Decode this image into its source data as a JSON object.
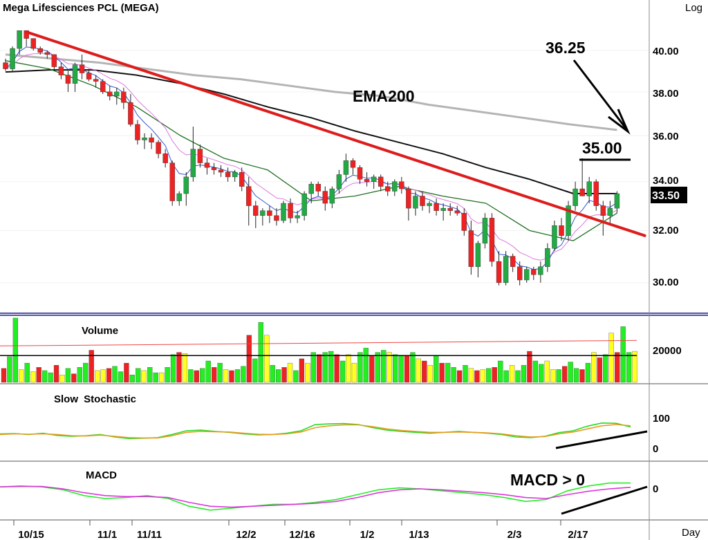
{
  "header": {
    "title": "Mega Lifesciences PCL (MEGA)",
    "scale_label": "Log"
  },
  "price_axis": {
    "ticks": [
      "40.00",
      "38.00",
      "36.00",
      "34.00",
      "32.00",
      "30.00"
    ],
    "last_price_label": "33.50"
  },
  "annotations": {
    "ema200": "EMA200",
    "target": "36.25",
    "resistance": "35.00",
    "macd_note": "MACD > 0"
  },
  "panels": {
    "volume": "Volume",
    "stochastic": "Slow Stochastic",
    "macd": "MACD"
  },
  "volume_axis": {
    "ticks": [
      "20000"
    ]
  },
  "stoch_axis": {
    "ticks": [
      "100",
      "0"
    ]
  },
  "macd_axis": {
    "ticks": [
      "0"
    ]
  },
  "date_axis": {
    "labels": [
      "10/15",
      "11/1",
      "11/11",
      "12/2",
      "12/16",
      "1/2",
      "1/13",
      "2/3",
      "2/17"
    ],
    "unit_label": "Day"
  },
  "colors": {
    "up": "#22aa44",
    "down": "#ee2222",
    "trendline": "#dd1c1c",
    "ema200": "#b4b4b4",
    "ema50": "#111111",
    "ema20": "#1e6e1e",
    "ema10": "#dd77dd",
    "ema5": "#3355cc",
    "vol_up": "#22ee22",
    "vol_down": "#ee2222",
    "vol_yellow": "#ffff22",
    "stoch_k": "#22dd22",
    "stoch_d": "#ee9922",
    "macd": "#22ee22",
    "macd_signal": "#dd33dd"
  },
  "chart_data": [
    {
      "type": "candlestick",
      "title": "Mega Lifesciences PCL (MEGA)",
      "y_scale": "log",
      "ylim": [
        29.0,
        42.3
      ],
      "candles": [
        [
          39.4,
          39.6,
          39.0,
          39.1
        ],
        [
          39.1,
          40.2,
          39.0,
          40.1
        ],
        [
          40.1,
          41.0,
          39.8,
          41.0
        ],
        [
          41.0,
          41.0,
          40.2,
          40.6
        ],
        [
          40.6,
          40.6,
          40.0,
          40.1
        ],
        [
          40.1,
          40.2,
          39.8,
          39.9
        ],
        [
          39.9,
          40.0,
          39.6,
          39.8
        ],
        [
          39.8,
          39.8,
          39.0,
          39.2
        ],
        [
          39.2,
          39.4,
          38.6,
          38.8
        ],
        [
          38.8,
          39.0,
          38.0,
          38.4
        ],
        [
          38.4,
          39.4,
          38.0,
          39.3
        ],
        [
          39.3,
          39.8,
          38.6,
          38.9
        ],
        [
          38.9,
          39.1,
          38.5,
          38.6
        ],
        [
          38.6,
          38.8,
          38.2,
          38.5
        ],
        [
          38.5,
          38.6,
          37.9,
          38.0
        ],
        [
          38.0,
          38.3,
          37.6,
          37.8
        ],
        [
          37.8,
          38.2,
          37.4,
          38.0
        ],
        [
          38.0,
          38.2,
          37.2,
          37.5
        ],
        [
          37.5,
          37.9,
          36.4,
          36.5
        ],
        [
          36.5,
          36.7,
          35.6,
          35.8
        ],
        [
          35.8,
          36.1,
          35.4,
          35.9
        ],
        [
          35.9,
          36.1,
          35.4,
          35.7
        ],
        [
          35.7,
          35.8,
          35.0,
          35.2
        ],
        [
          35.2,
          35.4,
          34.6,
          34.8
        ],
        [
          34.8,
          34.9,
          33.0,
          33.2
        ],
        [
          33.2,
          33.6,
          33.0,
          33.5
        ],
        [
          33.5,
          34.4,
          33.0,
          34.2
        ],
        [
          34.2,
          36.4,
          34.0,
          35.4
        ],
        [
          35.4,
          35.6,
          34.6,
          34.8
        ],
        [
          34.8,
          35.0,
          34.3,
          34.6
        ],
        [
          34.6,
          34.8,
          34.3,
          34.5
        ],
        [
          34.5,
          34.7,
          34.2,
          34.4
        ],
        [
          34.4,
          34.6,
          34.0,
          34.2
        ],
        [
          34.2,
          34.5,
          34.0,
          34.4
        ],
        [
          34.4,
          34.6,
          33.6,
          33.8
        ],
        [
          33.8,
          34.2,
          32.2,
          33.0
        ],
        [
          33.0,
          33.2,
          32.1,
          32.6
        ],
        [
          32.6,
          32.9,
          32.2,
          32.8
        ],
        [
          32.8,
          33.0,
          32.3,
          32.6
        ],
        [
          32.6,
          32.9,
          32.2,
          32.4
        ],
        [
          32.4,
          33.2,
          32.3,
          33.1
        ],
        [
          33.1,
          33.3,
          32.3,
          32.5
        ],
        [
          32.5,
          32.8,
          32.3,
          32.6
        ],
        [
          32.6,
          33.6,
          32.4,
          33.5
        ],
        [
          33.5,
          34.0,
          33.1,
          33.9
        ],
        [
          33.9,
          34.0,
          33.4,
          33.6
        ],
        [
          33.6,
          33.8,
          32.8,
          33.1
        ],
        [
          33.1,
          33.8,
          32.9,
          33.7
        ],
        [
          33.7,
          34.5,
          33.5,
          34.3
        ],
        [
          34.3,
          35.2,
          34.0,
          34.9
        ],
        [
          34.9,
          35.0,
          34.3,
          34.6
        ],
        [
          34.6,
          34.7,
          33.9,
          34.1
        ],
        [
          34.1,
          34.4,
          33.8,
          34.0
        ],
        [
          34.0,
          34.3,
          33.7,
          34.2
        ],
        [
          34.2,
          34.3,
          33.6,
          33.8
        ],
        [
          33.8,
          34.0,
          33.4,
          33.6
        ],
        [
          33.6,
          34.1,
          33.4,
          34.0
        ],
        [
          34.0,
          34.2,
          33.5,
          33.7
        ],
        [
          33.7,
          33.8,
          32.4,
          32.9
        ],
        [
          32.9,
          33.6,
          32.6,
          33.4
        ],
        [
          33.4,
          33.6,
          32.8,
          33.0
        ],
        [
          33.0,
          33.2,
          32.7,
          33.1
        ],
        [
          33.1,
          33.3,
          32.6,
          32.8
        ],
        [
          32.8,
          33.1,
          32.4,
          32.9
        ],
        [
          32.9,
          33.1,
          32.6,
          32.8
        ],
        [
          32.8,
          33.0,
          32.6,
          32.7
        ],
        [
          32.7,
          32.9,
          31.8,
          32.0
        ],
        [
          32.0,
          32.4,
          30.3,
          30.6
        ],
        [
          30.6,
          31.6,
          30.2,
          31.5
        ],
        [
          31.5,
          32.7,
          31.3,
          32.5
        ],
        [
          32.5,
          32.7,
          30.6,
          30.8
        ],
        [
          30.8,
          31.2,
          29.9,
          30.0
        ],
        [
          30.0,
          31.2,
          29.9,
          31.0
        ],
        [
          31.0,
          31.1,
          30.4,
          30.6
        ],
        [
          30.6,
          30.8,
          29.9,
          30.1
        ],
        [
          30.1,
          30.6,
          30.0,
          30.5
        ],
        [
          30.5,
          30.6,
          30.1,
          30.3
        ],
        [
          30.3,
          30.8,
          30.0,
          30.6
        ],
        [
          30.6,
          31.5,
          30.4,
          31.3
        ],
        [
          31.3,
          32.4,
          31.2,
          32.2
        ],
        [
          32.2,
          32.5,
          31.6,
          31.8
        ],
        [
          31.8,
          33.2,
          31.6,
          33.0
        ],
        [
          33.0,
          34.0,
          32.8,
          33.7
        ],
        [
          33.7,
          35.0,
          33.4,
          33.4
        ],
        [
          33.4,
          34.2,
          33.1,
          34.0
        ],
        [
          34.0,
          34.1,
          32.8,
          33.0
        ],
        [
          33.0,
          33.2,
          31.8,
          32.6
        ],
        [
          32.6,
          33.2,
          32.3,
          32.9
        ],
        [
          32.9,
          33.6,
          32.7,
          33.5
        ]
      ],
      "ema200": [
        39.8,
        39.6,
        39.4,
        39.1,
        38.8,
        38.6,
        38.3,
        38.0,
        37.8,
        37.4,
        37.1,
        36.8,
        36.5,
        36.25
      ],
      "ema50": [
        38.95,
        39.05,
        39.05,
        38.8,
        38.4,
        37.9,
        37.3,
        36.8,
        36.2,
        35.7,
        35.2,
        34.6,
        34.1,
        33.5,
        33.5
      ],
      "ema20": [
        39.5,
        39.1,
        38.3,
        37.3,
        36.0,
        35.0,
        34.5,
        33.2,
        33.4,
        33.8,
        33.4,
        33.1,
        32.0,
        31.6,
        32.7
      ],
      "trendline": {
        "from": [
          1,
          41.0
        ],
        "to": [
          91,
          31.8
        ]
      },
      "resistance": 35.0,
      "target": 36.25
    },
    {
      "type": "bar",
      "title": "Volume",
      "ylim": [
        0,
        30000
      ],
      "values": [
        6500,
        12000,
        30000,
        6000,
        9000,
        5000,
        7000,
        5500,
        4500,
        8000,
        3500,
        6500,
        4000,
        7000,
        9000,
        15000,
        5500,
        6000,
        6500,
        7500,
        5000,
        9000,
        3500,
        6500,
        5500,
        7000,
        4500,
        4500,
        7000,
        13000,
        14000,
        13500,
        6000,
        5500,
        6500,
        10000,
        7000,
        9000,
        6000,
        5500,
        6000,
        7500,
        22000,
        11000,
        28000,
        22000,
        8000,
        6000,
        7000,
        9000,
        5500,
        11000,
        9000,
        14000,
        13000,
        14000,
        14500,
        13000,
        10000,
        13000,
        9000,
        14000,
        16000,
        12500,
        14000,
        15000,
        14000,
        13000,
        12500,
        12500,
        14000,
        11000,
        10000,
        8000,
        12500,
        9000,
        9000,
        7000,
        5500,
        8000,
        6500,
        5500,
        6000,
        6500,
        7000,
        10000,
        5500,
        8000,
        5500,
        8000,
        14500,
        10000,
        8500,
        10000,
        6000,
        6000,
        7500,
        9500,
        6500,
        6000,
        9000,
        14000,
        11500,
        13000,
        23000,
        14000,
        26000,
        14000,
        14500
      ],
      "avg_long": 17000,
      "avg_short": 12500
    },
    {
      "type": "line",
      "title": "Slow Stochastic",
      "ylim": [
        0,
        100
      ],
      "series": [
        {
          "values": [
            50,
            51,
            48,
            52,
            45,
            42,
            44,
            48,
            40,
            35,
            36,
            38,
            48,
            60,
            62,
            58,
            55,
            50,
            47,
            48,
            52,
            60,
            80,
            82,
            83,
            80,
            70,
            62,
            58,
            55,
            52,
            55,
            58,
            55,
            52,
            48,
            40,
            38,
            42,
            54,
            60,
            75,
            85,
            84,
            72
          ]
        },
        {
          "values": [
            48,
            50,
            49,
            50,
            48,
            44,
            43,
            46,
            42,
            38,
            37,
            37,
            44,
            55,
            58,
            57,
            56,
            52,
            49,
            48,
            50,
            56,
            70,
            76,
            79,
            79,
            73,
            66,
            61,
            58,
            55,
            55,
            56,
            55,
            53,
            50,
            44,
            40,
            41,
            50,
            56,
            66,
            76,
            80,
            76
          ]
        }
      ]
    },
    {
      "type": "line",
      "title": "MACD",
      "ylim": [
        -1.6,
        1.0
      ],
      "series": [
        {
          "values": [
            0.1,
            0.15,
            0.1,
            -0.05,
            -0.35,
            -0.5,
            -0.45,
            -0.35,
            -0.5,
            -0.9,
            -1.1,
            -1.0,
            -0.9,
            -0.8,
            -0.8,
            -0.7,
            -0.55,
            -0.3,
            -0.05,
            0.05,
            0.0,
            -0.1,
            -0.2,
            -0.3,
            -0.45,
            -0.65,
            -0.55,
            -0.1,
            0.15,
            0.3,
            0.3
          ]
        },
        {
          "values": [
            0.1,
            0.12,
            0.12,
            0.0,
            -0.2,
            -0.35,
            -0.4,
            -0.4,
            -0.45,
            -0.7,
            -0.9,
            -0.95,
            -0.9,
            -0.85,
            -0.8,
            -0.75,
            -0.65,
            -0.45,
            -0.2,
            -0.05,
            0.0,
            -0.05,
            -0.12,
            -0.2,
            -0.3,
            -0.45,
            -0.5,
            -0.3,
            -0.12,
            0.0,
            0.08
          ]
        }
      ]
    }
  ]
}
